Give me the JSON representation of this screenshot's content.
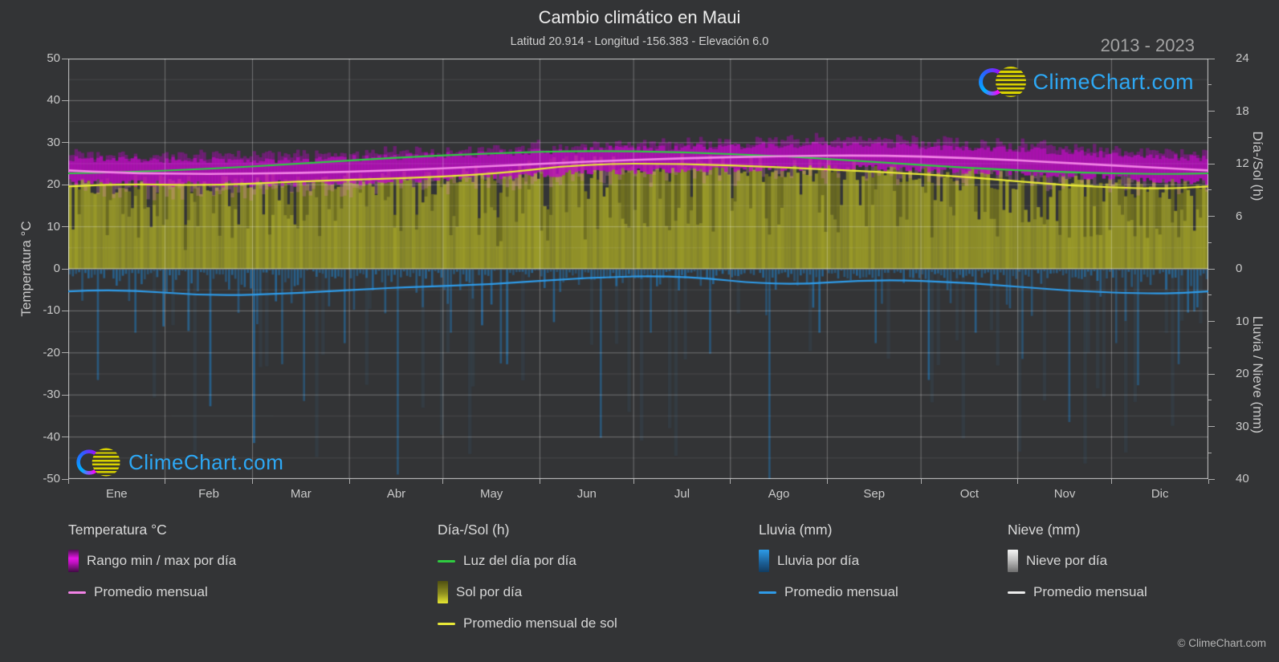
{
  "page": {
    "watermark_text": "ClimeChart.com",
    "footer": "© ClimeChart.com",
    "background": "#333436"
  },
  "chart_data": {
    "type": "area",
    "subtype": "climate-composite",
    "title": "Cambio climático en Maui",
    "subtitle": "Latitud 20.914 - Longitud -156.383 - Elevación 6.0",
    "period": "2013 - 2023",
    "months": [
      "Ene",
      "Feb",
      "Mar",
      "Abr",
      "May",
      "Jun",
      "Jul",
      "Ago",
      "Sep",
      "Oct",
      "Nov",
      "Dic"
    ],
    "axes": {
      "temp": {
        "label": "Temperatura °C",
        "range": [
          -50,
          50
        ],
        "ticks": [
          50,
          40,
          30,
          20,
          10,
          0,
          -10,
          -20,
          -30,
          -40,
          -50
        ],
        "unit": "°C"
      },
      "day_sun": {
        "label": "Día-/Sol (h)",
        "range": [
          0,
          24
        ],
        "ticks": [
          24,
          18,
          12,
          6,
          0
        ],
        "minor_ticks": [
          21,
          15,
          9,
          3
        ],
        "unit": "h"
      },
      "rain_snow": {
        "label": "Lluvia / Nieve (mm)",
        "range": [
          0,
          40
        ],
        "inverted": true,
        "ticks": [
          10,
          20,
          30,
          40
        ],
        "minor_ticks": [
          5,
          15,
          25,
          35
        ],
        "unit": "mm"
      }
    },
    "series": {
      "daylight_h": {
        "name": "Luz del día por día",
        "unit": "h",
        "monthly": [
          11.0,
          11.4,
          12.0,
          12.7,
          13.2,
          13.5,
          13.3,
          12.9,
          12.2,
          11.5,
          11.0,
          10.8
        ]
      },
      "sun_h": {
        "name": "Sol por día / Promedio mensual de sol",
        "unit": "h",
        "monthly": [
          9.7,
          9.5,
          10.0,
          10.3,
          10.8,
          12.0,
          12.0,
          11.6,
          11.1,
          10.5,
          9.5,
          9.1
        ]
      },
      "temp_avg_c": {
        "name": "Promedio mensual",
        "unit": "°C",
        "monthly": [
          22.8,
          22.5,
          22.8,
          23.4,
          24.4,
          25.5,
          26.3,
          26.8,
          27.0,
          26.4,
          25.2,
          24.0
        ]
      },
      "temp_max_c": {
        "name": "Rango max por día",
        "unit": "°C",
        "monthly": [
          26.0,
          25.8,
          26.0,
          26.6,
          27.4,
          28.3,
          28.9,
          29.4,
          29.4,
          28.8,
          27.7,
          26.6
        ]
      },
      "temp_min_c": {
        "name": "Rango min por día",
        "unit": "°C",
        "monthly": [
          20.4,
          20.1,
          20.3,
          20.9,
          21.9,
          22.9,
          23.5,
          24.0,
          23.9,
          23.3,
          22.3,
          21.1
        ]
      },
      "rain_mm": {
        "name": "Lluvia por día / Promedio mensual",
        "unit": "mm",
        "monthly": [
          3.8,
          5.2,
          4.6,
          3.5,
          3.0,
          1.6,
          1.3,
          3.2,
          2.0,
          2.6,
          4.2,
          4.8
        ],
        "daily_spikes": [
          [
            9,
            21
          ],
          [
            21,
            12
          ],
          [
            45,
            26
          ],
          [
            59,
            33
          ],
          [
            68,
            18
          ],
          [
            75,
            25
          ],
          [
            88,
            14
          ],
          [
            105,
            39
          ],
          [
            122,
            12
          ],
          [
            140,
            18
          ],
          [
            155,
            10
          ],
          [
            170,
            32
          ],
          [
            186,
            12
          ],
          [
            205,
            16
          ],
          [
            224,
            40
          ],
          [
            240,
            12
          ],
          [
            258,
            14
          ],
          [
            275,
            21
          ],
          [
            290,
            12
          ],
          [
            305,
            17
          ],
          [
            320,
            29
          ],
          [
            335,
            14
          ],
          [
            342,
            22
          ],
          [
            355,
            18
          ]
        ]
      },
      "snow_mm": {
        "name": "Nieve por día / Promedio mensual",
        "unit": "mm",
        "monthly": [
          0,
          0,
          0,
          0,
          0,
          0,
          0,
          0,
          0,
          0,
          0,
          0
        ]
      }
    },
    "daily_texture": {
      "seed": 20132023,
      "temp_noise_c": 0.8,
      "temp_fuzz_above_c": 2.2,
      "temp_streak_below_prob": 0.6,
      "temp_streak_below_c": 3.5,
      "sun_noise_h": 1.2,
      "cloudy_prob": 0.18,
      "cloudy_extra_h": 4.5,
      "rain_light_prob": 0.5,
      "wash_prob": 0.08
    },
    "colors": {
      "temp_band": "#c30ac8",
      "temp_avg_line": "#f283e6",
      "daylight_line": "#2ecc40",
      "sun_fill": "#9a9a28",
      "sun_avg_line": "#e8e838",
      "rain_bar": "#2278b9",
      "rain_avg_line": "#2f9be8",
      "snow_bar": "#e0e0e0",
      "snow_avg_line": "#eeeeee",
      "grid": "#ffffff",
      "watermark_blue": "#2da8f5"
    }
  },
  "legend": {
    "groups": [
      {
        "title": "Temperatura °C",
        "items": [
          {
            "label": "Rango min / max por día",
            "swatch": "gradient-magenta"
          },
          {
            "label": "Promedio mensual",
            "swatch": "line-magenta"
          }
        ]
      },
      {
        "title": "Día-/Sol (h)",
        "items": [
          {
            "label": "Luz del día por día",
            "swatch": "line-green"
          },
          {
            "label": "Sol por día",
            "swatch": "gradient-yellow"
          },
          {
            "label": "Promedio mensual de sol",
            "swatch": "line-yellow"
          }
        ]
      },
      {
        "title": "Lluvia (mm)",
        "items": [
          {
            "label": "Lluvia por día",
            "swatch": "gradient-blue"
          },
          {
            "label": "Promedio mensual",
            "swatch": "line-blue"
          }
        ]
      },
      {
        "title": "Nieve (mm)",
        "items": [
          {
            "label": "Nieve por día",
            "swatch": "gradient-white"
          },
          {
            "label": "Promedio mensual",
            "swatch": "line-white"
          }
        ]
      }
    ]
  }
}
